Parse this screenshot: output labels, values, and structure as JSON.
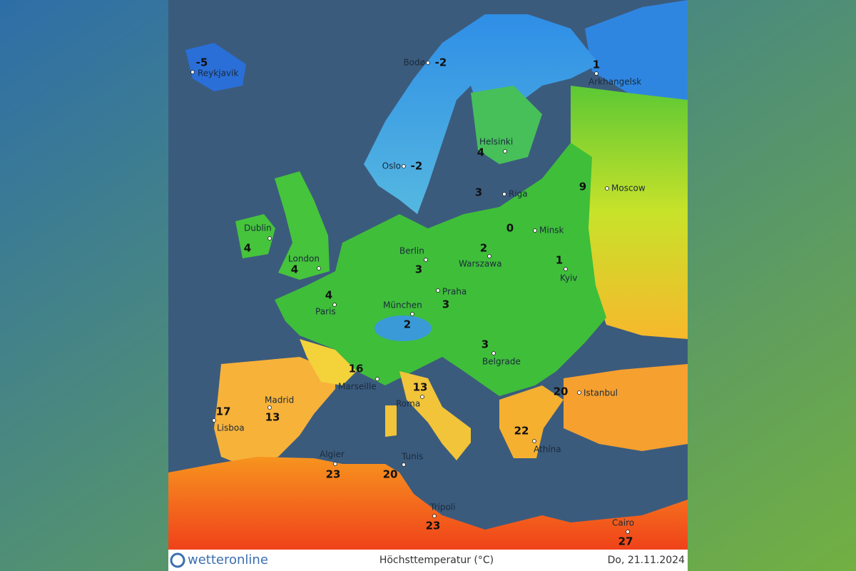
{
  "footer": {
    "logo": "wetteronline",
    "title": "Höchsttemperatur (°C)",
    "date": "Do, 21.11.2024"
  },
  "cities": [
    {
      "name": "Reykjavik",
      "temp": -5
    },
    {
      "name": "Bodø",
      "temp": -2
    },
    {
      "name": "Arkhangelsk",
      "temp": 1
    },
    {
      "name": "Helsinki",
      "temp": 4
    },
    {
      "name": "Oslo",
      "temp": -2
    },
    {
      "name": "Riga",
      "temp": 3
    },
    {
      "name": "Moscow",
      "temp": 9
    },
    {
      "name": "Dublin",
      "temp": 4
    },
    {
      "name": "Minsk",
      "temp": 0
    },
    {
      "name": "London",
      "temp": 4
    },
    {
      "name": "Berlin",
      "temp": 3
    },
    {
      "name": "Warszawa",
      "temp": 2
    },
    {
      "name": "Kyiv",
      "temp": 1
    },
    {
      "name": "Paris",
      "temp": 4
    },
    {
      "name": "Praha",
      "temp": 3
    },
    {
      "name": "München",
      "temp": 2
    },
    {
      "name": "Belgrade",
      "temp": 3
    },
    {
      "name": "Marseille",
      "temp": 16
    },
    {
      "name": "Roma",
      "temp": 13
    },
    {
      "name": "Madrid",
      "temp": 13
    },
    {
      "name": "Lisboa",
      "temp": 17
    },
    {
      "name": "Istanbul",
      "temp": 20
    },
    {
      "name": "Athína",
      "temp": 22
    },
    {
      "name": "Algier",
      "temp": 23
    },
    {
      "name": "Tunis",
      "temp": 20
    },
    {
      "name": "Tripoli",
      "temp": 23
    },
    {
      "name": "Cairo",
      "temp": 27
    }
  ]
}
